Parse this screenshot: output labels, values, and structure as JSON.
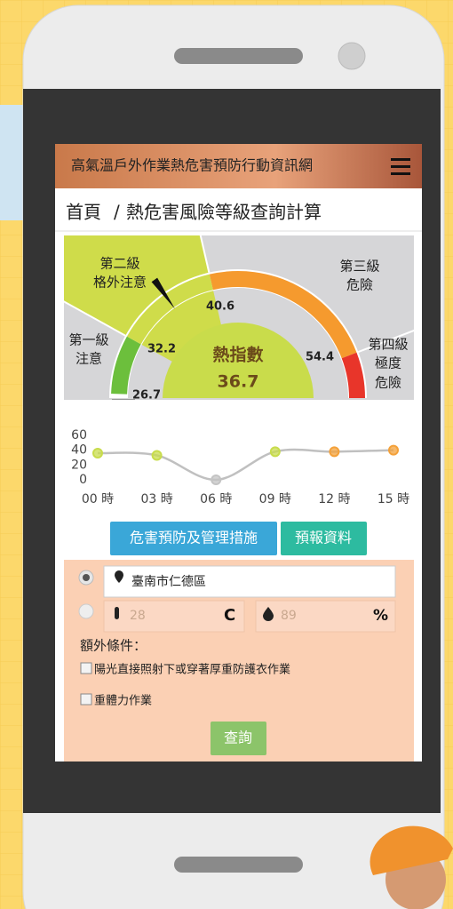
{
  "header": {
    "site_title": "高氣溫戶外作業熱危害預防行動資訊網",
    "breadcrumb_home": "首頁",
    "breadcrumb_sep": "/",
    "breadcrumb_page": "熱危害風險等級查詢計算"
  },
  "gauge": {
    "levels": [
      {
        "name": "第一級",
        "desc": [
          "注意"
        ]
      },
      {
        "name": "第二級",
        "desc": [
          "格外注意"
        ]
      },
      {
        "name": "第三級",
        "desc": [
          "危險"
        ]
      },
      {
        "name": "第四級",
        "desc": [
          "極度",
          "危險"
        ]
      }
    ],
    "thresholds": [
      26.7,
      32.2,
      40.6,
      54.4
    ],
    "label": "熱指數",
    "value": 36.7
  },
  "chart_data": {
    "type": "line",
    "categories": [
      "00 時",
      "03 時",
      "06 時",
      "09 時",
      "12 時",
      "15 時"
    ],
    "values": [
      36,
      33,
      0,
      38,
      38,
      40
    ],
    "colors": [
      "#c8dc4c",
      "#c8dc4c",
      "#c4c4c4",
      "#c8dc4c",
      "#f4a13a",
      "#f4a13a"
    ],
    "line_color": "#c0c0c0",
    "ylim": [
      0,
      60
    ],
    "yticks": [
      0,
      20,
      40,
      60
    ]
  },
  "buttons": {
    "measures": "危害預防及管理措施",
    "forecast": "預報資料"
  },
  "form": {
    "location": "臺南市仁德區",
    "temperature": {
      "value": 28,
      "unit": "C"
    },
    "humidity": {
      "value": 89,
      "unit": "%"
    },
    "extra_label": "額外條件：",
    "conditions": [
      "陽光直接照射下或穿著厚重防護衣作業",
      "重體力作業"
    ],
    "submit": "查詢"
  }
}
